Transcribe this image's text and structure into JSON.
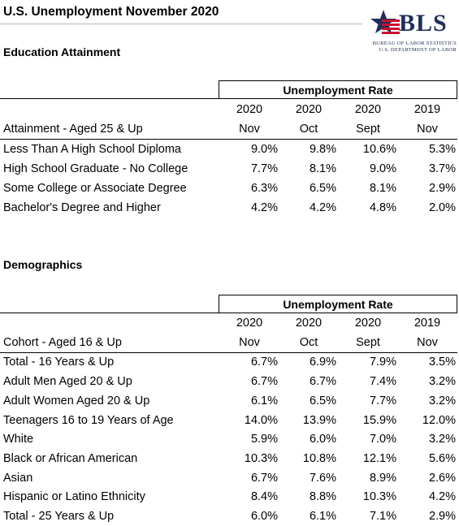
{
  "page": {
    "title": "U.S. Unemployment November 2020"
  },
  "logo": {
    "text": "BLS",
    "line1": "BUREAU OF LABOR STATISTICS",
    "line2": "U.S. DEPARTMENT OF LABOR"
  },
  "colors": {
    "logo_navy": "#1f2f5a",
    "logo_red": "#c8102e"
  },
  "education": {
    "section_title": "Education Attainment",
    "group_header": "Unemployment Rate",
    "row_header_label": "Attainment - Aged 25 & Up",
    "columns": [
      {
        "year": "2020",
        "month": "Nov"
      },
      {
        "year": "2020",
        "month": "Oct"
      },
      {
        "year": "2020",
        "month": "Sept"
      },
      {
        "year": "2019",
        "month": "Nov"
      }
    ],
    "rows": [
      {
        "label": "Less Than A High School Diploma",
        "values": [
          "9.0%",
          "9.8%",
          "10.6%",
          "5.3%"
        ]
      },
      {
        "label": "High School Graduate - No College",
        "values": [
          "7.7%",
          "8.1%",
          "9.0%",
          "3.7%"
        ]
      },
      {
        "label": "Some College or Associate Degree",
        "values": [
          "6.3%",
          "6.5%",
          "8.1%",
          "2.9%"
        ]
      },
      {
        "label": "Bachelor's Degree and Higher",
        "values": [
          "4.2%",
          "4.2%",
          "4.8%",
          "2.0%"
        ]
      }
    ]
  },
  "demographics": {
    "section_title": "Demographics",
    "group_header": "Unemployment Rate",
    "row_header_label": "Cohort - Aged 16 & Up",
    "columns": [
      {
        "year": "2020",
        "month": "Nov"
      },
      {
        "year": "2020",
        "month": "Oct"
      },
      {
        "year": "2020",
        "month": "Sept"
      },
      {
        "year": "2019",
        "month": "Nov"
      }
    ],
    "rows": [
      {
        "label": "Total - 16 Years & Up",
        "values": [
          "6.7%",
          "6.9%",
          "7.9%",
          "3.5%"
        ]
      },
      {
        "label": "Adult Men Aged 20 & Up",
        "values": [
          "6.7%",
          "6.7%",
          "7.4%",
          "3.2%"
        ]
      },
      {
        "label": "Adult Women Aged 20 & Up",
        "values": [
          "6.1%",
          "6.5%",
          "7.7%",
          "3.2%"
        ]
      },
      {
        "label": "Teenagers 16 to 19 Years of Age",
        "values": [
          "14.0%",
          "13.9%",
          "15.9%",
          "12.0%"
        ]
      },
      {
        "label": "White",
        "values": [
          "5.9%",
          "6.0%",
          "7.0%",
          "3.2%"
        ]
      },
      {
        "label": "Black or African American",
        "values": [
          "10.3%",
          "10.8%",
          "12.1%",
          "5.6%"
        ]
      },
      {
        "label": "Asian",
        "values": [
          "6.7%",
          "7.6%",
          "8.9%",
          "2.6%"
        ]
      },
      {
        "label": "Hispanic or Latino Ethnicity",
        "values": [
          "8.4%",
          "8.8%",
          "10.3%",
          "4.2%"
        ]
      },
      {
        "label": "Total - 25 Years & Up",
        "values": [
          "6.0%",
          "6.1%",
          "7.1%",
          "2.9%"
        ]
      }
    ]
  }
}
